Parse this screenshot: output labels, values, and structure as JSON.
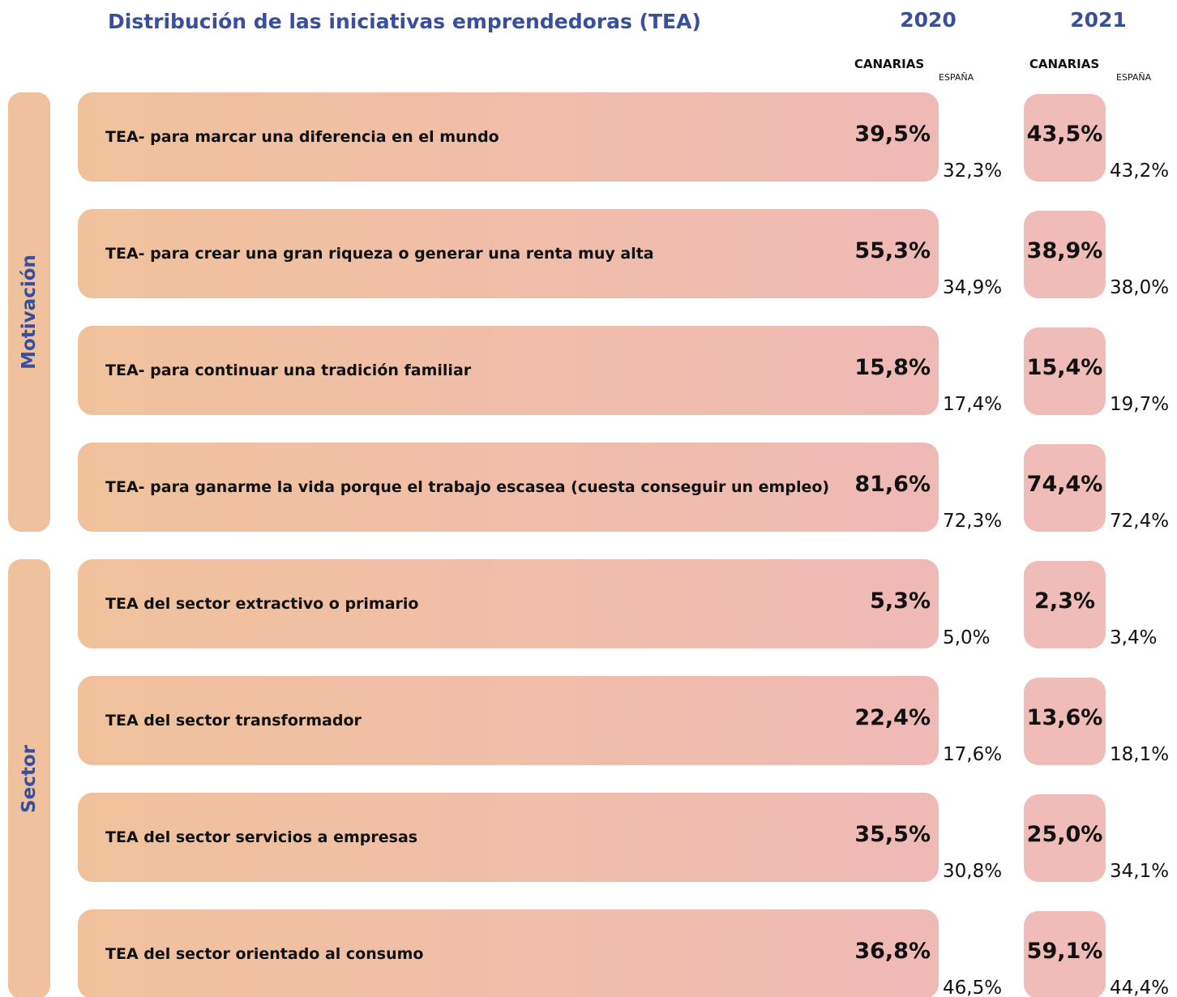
{
  "title": "Distribución de las iniciativas emprendedoras (TEA)",
  "years": [
    {
      "year": "2020",
      "columns": [
        "CANARIAS",
        "ESPAÑA"
      ]
    },
    {
      "year": "2021",
      "columns": [
        "CANARIAS",
        "ESPAÑA"
      ]
    }
  ],
  "groups": [
    {
      "name": "Motivación",
      "rows": [
        {
          "label": "TEA- para marcar una diferencia en el mundo",
          "values": [
            "39,5%",
            "32,3%",
            "43,5%",
            "43,2%"
          ]
        },
        {
          "label": "TEA- para crear una gran riqueza o generar una renta muy alta",
          "values": [
            "55,3%",
            "34,9%",
            "38,9%",
            "38,0%"
          ]
        },
        {
          "label": "TEA- para continuar una tradición familiar",
          "values": [
            "15,8%",
            "17,4%",
            "15,4%",
            "19,7%"
          ]
        },
        {
          "label": "TEA- para ganarme la vida porque el trabajo escasea (cuesta conseguir un empleo)",
          "values": [
            "81,6%",
            "72,3%",
            "74,4%",
            "72,4%"
          ]
        }
      ]
    },
    {
      "name": "Sector",
      "rows": [
        {
          "label": "TEA del sector extractivo o primario",
          "values": [
            "5,3%",
            "5,0%",
            "2,3%",
            "3,4%"
          ]
        },
        {
          "label": "TEA del sector transformador",
          "values": [
            "22,4%",
            "17,6%",
            "13,6%",
            "18,1%"
          ]
        },
        {
          "label": "TEA del sector servicios a empresas",
          "values": [
            "35,5%",
            "30,8%",
            "25,0%",
            "34,1%"
          ]
        },
        {
          "label": "TEA del sector orientado al consumo",
          "values": [
            "36,8%",
            "46,5%",
            "59,1%",
            "44,4%"
          ]
        }
      ]
    }
  ]
}
